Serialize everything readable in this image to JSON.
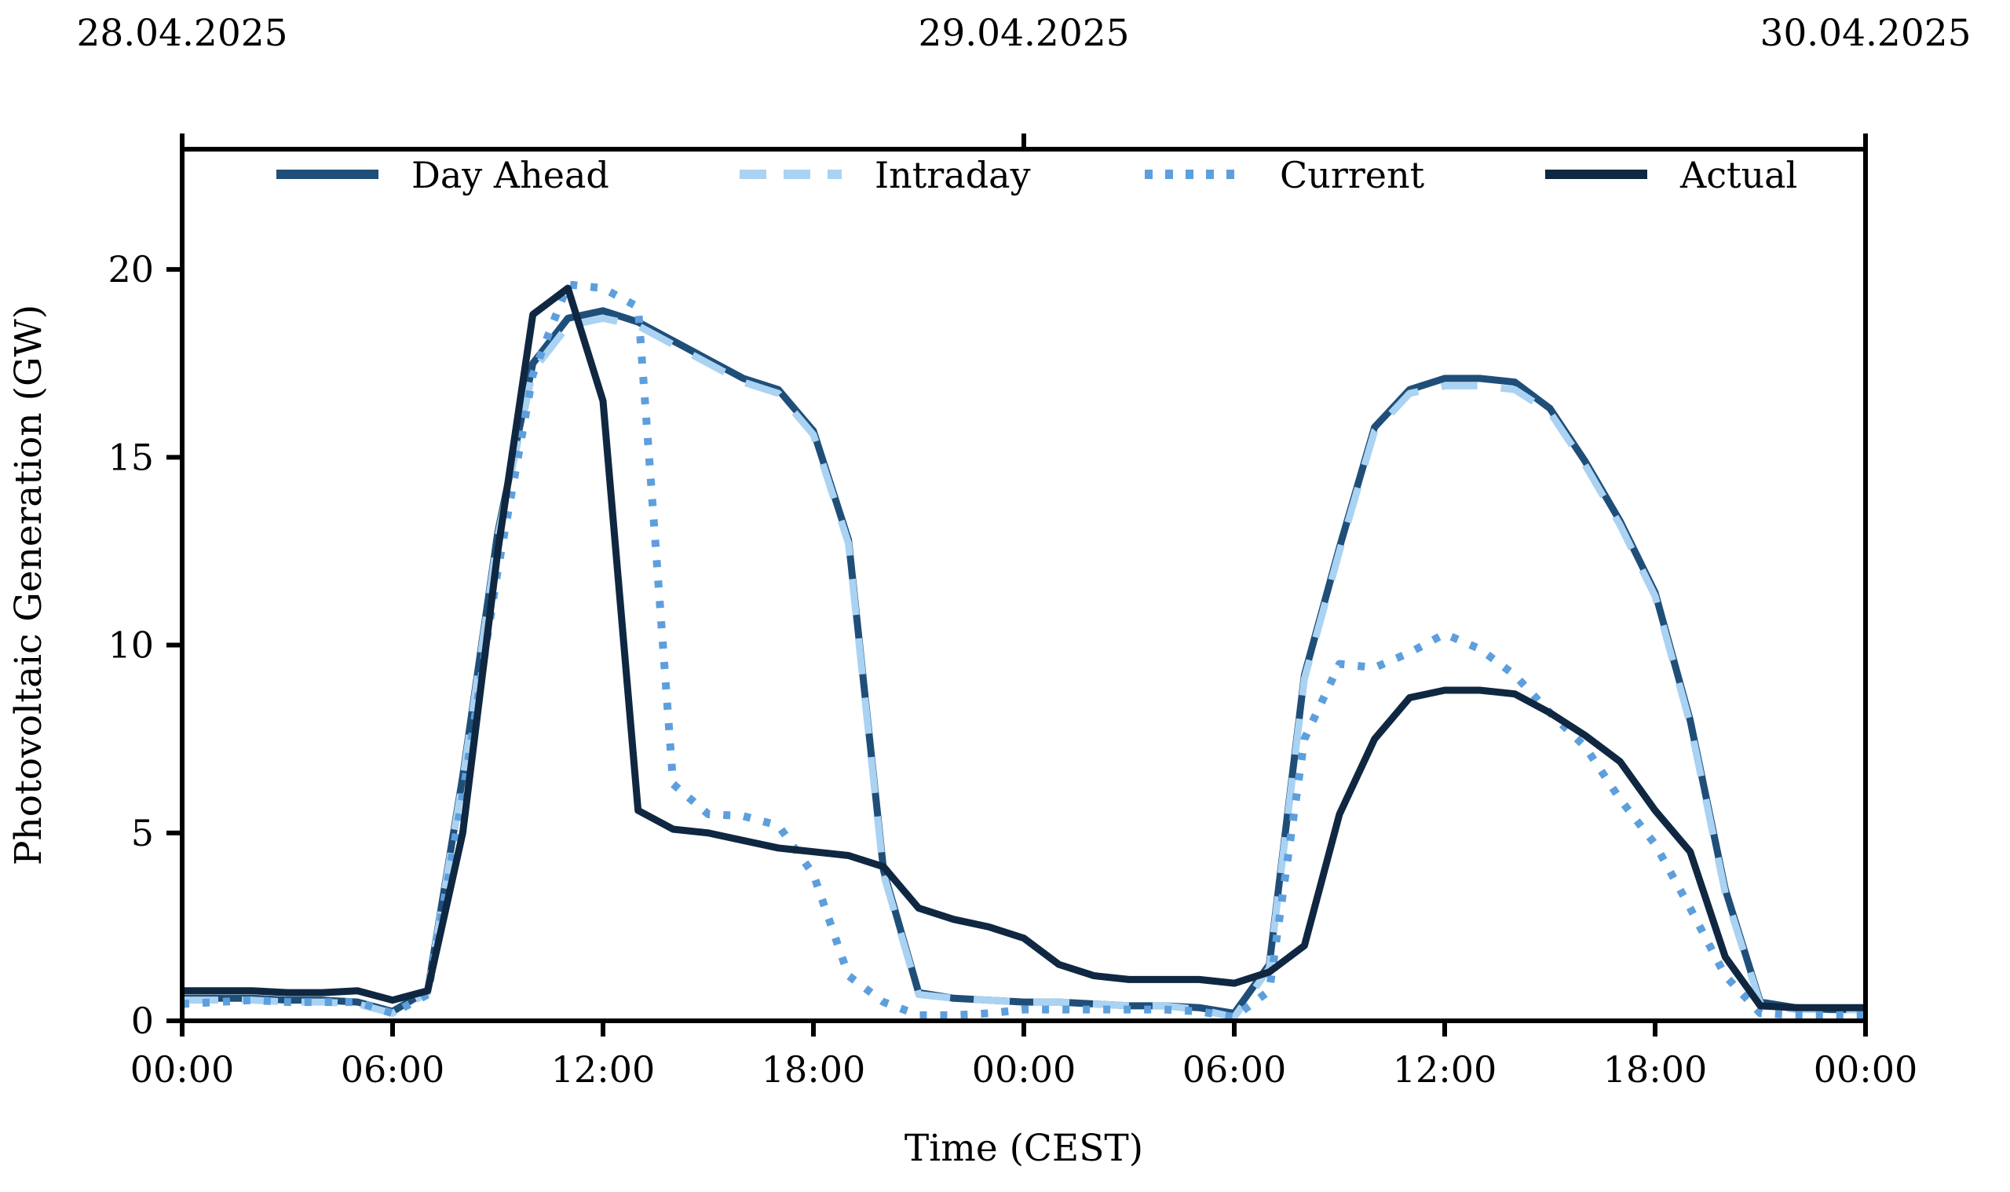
{
  "chart_data": {
    "type": "line",
    "title": "",
    "xlabel": "Time (CEST)",
    "ylabel": "Photovoltaic Generation (GW)",
    "x_unit_hours_start": "28.04.2025 00:00",
    "x_range_hours": [
      0,
      48
    ],
    "ylim": [
      0,
      23.2
    ],
    "y_ticks": [
      0,
      5,
      10,
      15,
      20
    ],
    "x_tick_hours": [
      0,
      6,
      12,
      18,
      24,
      30,
      36,
      42,
      48
    ],
    "x_tick_labels": [
      "00:00",
      "06:00",
      "12:00",
      "18:00",
      "00:00",
      "06:00",
      "12:00",
      "18:00",
      "00:00"
    ],
    "top_date_tick_hours": [
      0,
      24,
      48
    ],
    "top_date_labels": [
      "28.04.2025",
      "29.04.2025",
      "30.04.2025"
    ],
    "grid": false,
    "legend_position": "top-inside-row",
    "colors": {
      "day_ahead": "#1f4e79",
      "intraday": "#aad2f2",
      "current": "#5d9fdd",
      "actual": "#0f2741",
      "axis": "#000000"
    },
    "series": [
      {
        "name": "Day Ahead",
        "style": "solid",
        "color_key": "day_ahead",
        "values": [
          0.6,
          0.6,
          0.6,
          0.55,
          0.55,
          0.5,
          0.25,
          0.8,
          6.5,
          13.0,
          17.5,
          18.7,
          18.9,
          18.6,
          18.1,
          17.6,
          17.1,
          16.8,
          15.7,
          12.8,
          4.0,
          0.75,
          0.6,
          0.55,
          0.5,
          0.5,
          0.45,
          0.4,
          0.4,
          0.35,
          0.2,
          1.5,
          9.2,
          12.6,
          15.8,
          16.8,
          17.1,
          17.1,
          17.0,
          16.3,
          14.9,
          13.3,
          11.4,
          8.0,
          3.5,
          0.5,
          0.35,
          0.3,
          0.3
        ]
      },
      {
        "name": "Intraday",
        "style": "dashed",
        "color_key": "intraday",
        "values": [
          0.55,
          0.55,
          0.55,
          0.5,
          0.5,
          0.45,
          0.2,
          0.75,
          6.4,
          12.9,
          17.3,
          18.5,
          18.7,
          18.5,
          18.0,
          17.5,
          17.0,
          16.7,
          15.6,
          12.7,
          3.9,
          0.7,
          0.6,
          0.55,
          0.5,
          0.5,
          0.45,
          0.4,
          0.4,
          0.3,
          0.1,
          1.4,
          9.1,
          12.5,
          15.7,
          16.7,
          16.9,
          16.9,
          16.8,
          16.2,
          14.8,
          13.2,
          11.3,
          7.9,
          3.4,
          0.45,
          0.3,
          0.3,
          0.3
        ]
      },
      {
        "name": "Current",
        "style": "dotted",
        "color_key": "current",
        "values": [
          0.45,
          0.5,
          0.55,
          0.5,
          0.5,
          0.5,
          0.2,
          0.7,
          6.0,
          12.0,
          17.2,
          19.6,
          19.5,
          19.0,
          6.3,
          5.5,
          5.45,
          5.2,
          3.9,
          1.2,
          0.5,
          0.15,
          0.15,
          0.2,
          0.3,
          0.3,
          0.3,
          0.3,
          0.3,
          0.25,
          0.1,
          0.8,
          7.5,
          9.5,
          9.4,
          9.8,
          10.3,
          9.9,
          9.2,
          8.2,
          7.3,
          5.9,
          4.7,
          3.0,
          1.2,
          0.2,
          0.15,
          0.15,
          0.15
        ]
      },
      {
        "name": "Actual",
        "style": "solid",
        "color_key": "actual",
        "values": [
          0.8,
          0.8,
          0.8,
          0.75,
          0.75,
          0.8,
          0.55,
          0.8,
          5.0,
          12.5,
          18.8,
          19.5,
          16.5,
          5.6,
          5.1,
          5.0,
          4.8,
          4.6,
          4.5,
          4.4,
          4.1,
          3.0,
          2.7,
          2.5,
          2.2,
          1.5,
          1.2,
          1.1,
          1.1,
          1.1,
          1.0,
          1.3,
          2.0,
          5.5,
          7.5,
          8.6,
          8.8,
          8.8,
          8.7,
          8.2,
          7.6,
          6.9,
          5.6,
          4.5,
          1.7,
          0.4,
          0.35,
          0.35,
          0.35
        ]
      }
    ],
    "legend_entries": [
      "Day Ahead",
      "Intraday",
      "Current",
      "Actual"
    ]
  },
  "layout_text": {
    "xlabel": "Time (CEST)",
    "ylabel": "Photovoltaic Generation (GW)"
  }
}
